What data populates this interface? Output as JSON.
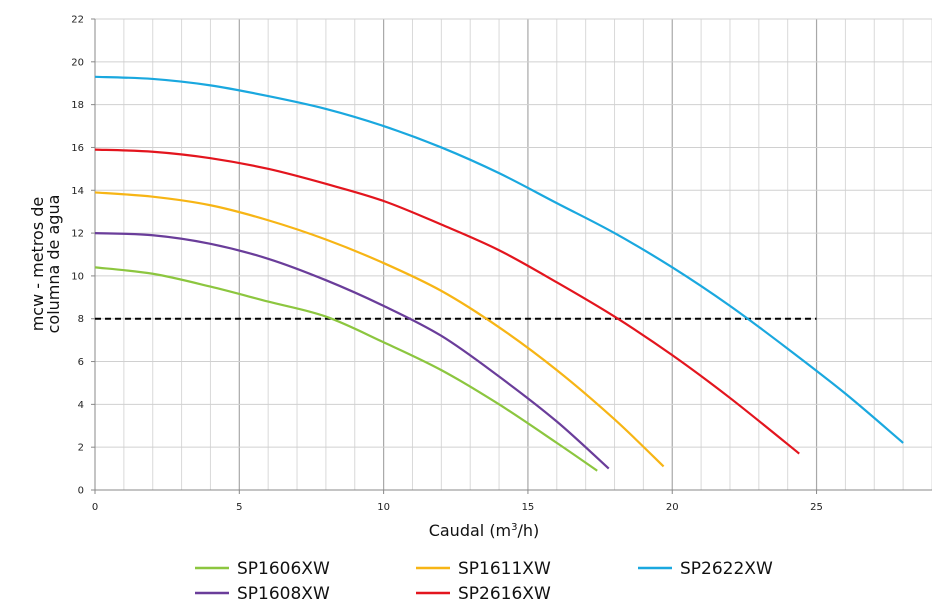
{
  "chart_data": {
    "type": "line",
    "xlabel_main": "Caudal (m",
    "xlabel_sup": "3",
    "xlabel_end": "/h)",
    "ylabel_line1": "mcw - metros de",
    "ylabel_line2": "columna de agua",
    "xlim": [
      0,
      29
    ],
    "ylim": [
      0,
      22
    ],
    "x_ticks": [
      0,
      5,
      10,
      15,
      20,
      25
    ],
    "y_ticks": [
      0,
      2,
      4,
      6,
      8,
      10,
      12,
      14,
      16,
      18,
      20,
      22
    ],
    "grid": true,
    "legend_position": "bottom",
    "reference_line": {
      "y": 8,
      "x_range": [
        0,
        25
      ],
      "style": "dashed",
      "color": "#000000"
    },
    "series": [
      {
        "name": "SP1606XW",
        "color": "#8cc63f",
        "x": [
          0,
          2,
          4,
          6,
          8,
          10,
          12,
          14,
          16,
          17.4
        ],
        "y": [
          10.4,
          10.1,
          9.5,
          8.8,
          8.1,
          6.9,
          5.6,
          4.0,
          2.2,
          0.9
        ]
      },
      {
        "name": "SP1611XW",
        "color": "#f7b515",
        "x": [
          0,
          2,
          4,
          6,
          8,
          10,
          12,
          14,
          16,
          18,
          19.7
        ],
        "y": [
          13.9,
          13.7,
          13.3,
          12.6,
          11.7,
          10.6,
          9.3,
          7.6,
          5.6,
          3.3,
          1.1
        ]
      },
      {
        "name": "SP2622XW",
        "color": "#1aa8df",
        "x": [
          0,
          2,
          4,
          6,
          8,
          10,
          12,
          14,
          16,
          18,
          20,
          22,
          24,
          26,
          28
        ],
        "y": [
          19.3,
          19.2,
          18.9,
          18.4,
          17.8,
          17.0,
          16.0,
          14.8,
          13.4,
          12.0,
          10.4,
          8.6,
          6.6,
          4.5,
          2.2
        ]
      },
      {
        "name": "SP1608XW",
        "color": "#6a3d9a",
        "x": [
          0,
          2,
          4,
          6,
          8,
          10,
          12,
          14,
          16,
          17.8
        ],
        "y": [
          12.0,
          11.9,
          11.5,
          10.8,
          9.8,
          8.6,
          7.2,
          5.3,
          3.2,
          1.0
        ]
      },
      {
        "name": "SP2616XW",
        "color": "#e3151e",
        "x": [
          0,
          2,
          4,
          6,
          8,
          10,
          12,
          14,
          16,
          18,
          20,
          22,
          24.4
        ],
        "y": [
          15.9,
          15.8,
          15.5,
          15.0,
          14.3,
          13.5,
          12.4,
          11.2,
          9.7,
          8.1,
          6.3,
          4.3,
          1.7
        ]
      }
    ]
  }
}
